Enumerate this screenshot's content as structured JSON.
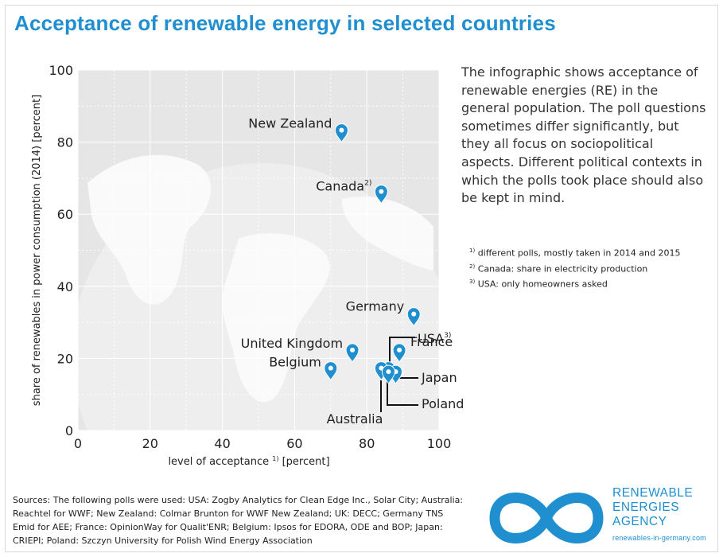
{
  "title": "Acceptance of renewable energy in selected countries",
  "description": "The infographic shows acceptance of renewable energies (RE) in the general population. The poll questions sometimes differ significantly, but they all focus on sociopolitical aspects. Different political contexts in which the polls took place should also be kept in mind.",
  "footnotes": [
    {
      "mark": "1)",
      "text": "different polls, mostly taken in 2014 and 2015"
    },
    {
      "mark": "2)",
      "text": "Canada: share in electricity production"
    },
    {
      "mark": "3)",
      "text": "USA: only homeowners asked"
    }
  ],
  "sources": "Sources: The following polls were used: USA: Zogby Analytics for Clean Edge Inc., Solar City; Australia: Reachtel for WWF; New Zealand: Colmar Brunton for WWF New Zealand; UK: DECC; Germany TNS Emid for AEE; France: OpinionWay for Qualit'ENR; Belgium: Ipsos for EDORA, ODE and BOP; Japan: CRIEPI; Poland: Szczyn University for Polish Wind Energy Association",
  "agency": {
    "line1": "RENEWABLE",
    "line2": "ENERGIES",
    "line3": "AGENCY",
    "url": "renewables-in-germany.com"
  },
  "colors": {
    "accent": "#1f8fd0",
    "marker": "#1f8fd0",
    "plot_bg": "#e6e6e6"
  },
  "chart_data": {
    "type": "scatter",
    "xlabel": "level of acceptance",
    "xlabel_sup": "1)",
    "xlabel_unit": "[percent]",
    "ylabel": "share of renewables in power consumption (2014) [percent]",
    "xlim": [
      0,
      100
    ],
    "ylim": [
      0,
      100
    ],
    "xticks": [
      0,
      20,
      40,
      60,
      80,
      100
    ],
    "yticks": [
      0,
      20,
      40,
      60,
      80,
      100
    ],
    "grid": true,
    "points": [
      {
        "label": "New Zealand",
        "sup": "",
        "x": 73,
        "y": 80
      },
      {
        "label": "Canada",
        "sup": "2)",
        "x": 84,
        "y": 63
      },
      {
        "label": "Germany",
        "sup": "",
        "x": 93,
        "y": 29
      },
      {
        "label": "United Kingdom",
        "sup": "",
        "x": 76,
        "y": 19
      },
      {
        "label": "France",
        "sup": "",
        "x": 89,
        "y": 19
      },
      {
        "label": "Belgium",
        "sup": "",
        "x": 70,
        "y": 14
      },
      {
        "label": "USA",
        "sup": "3)",
        "x": 86,
        "y": 14
      },
      {
        "label": "Japan",
        "sup": "",
        "x": 88,
        "y": 13
      },
      {
        "label": "Australia",
        "sup": "",
        "x": 84,
        "y": 14
      },
      {
        "label": "Poland",
        "sup": "",
        "x": 86,
        "y": 13
      }
    ]
  }
}
